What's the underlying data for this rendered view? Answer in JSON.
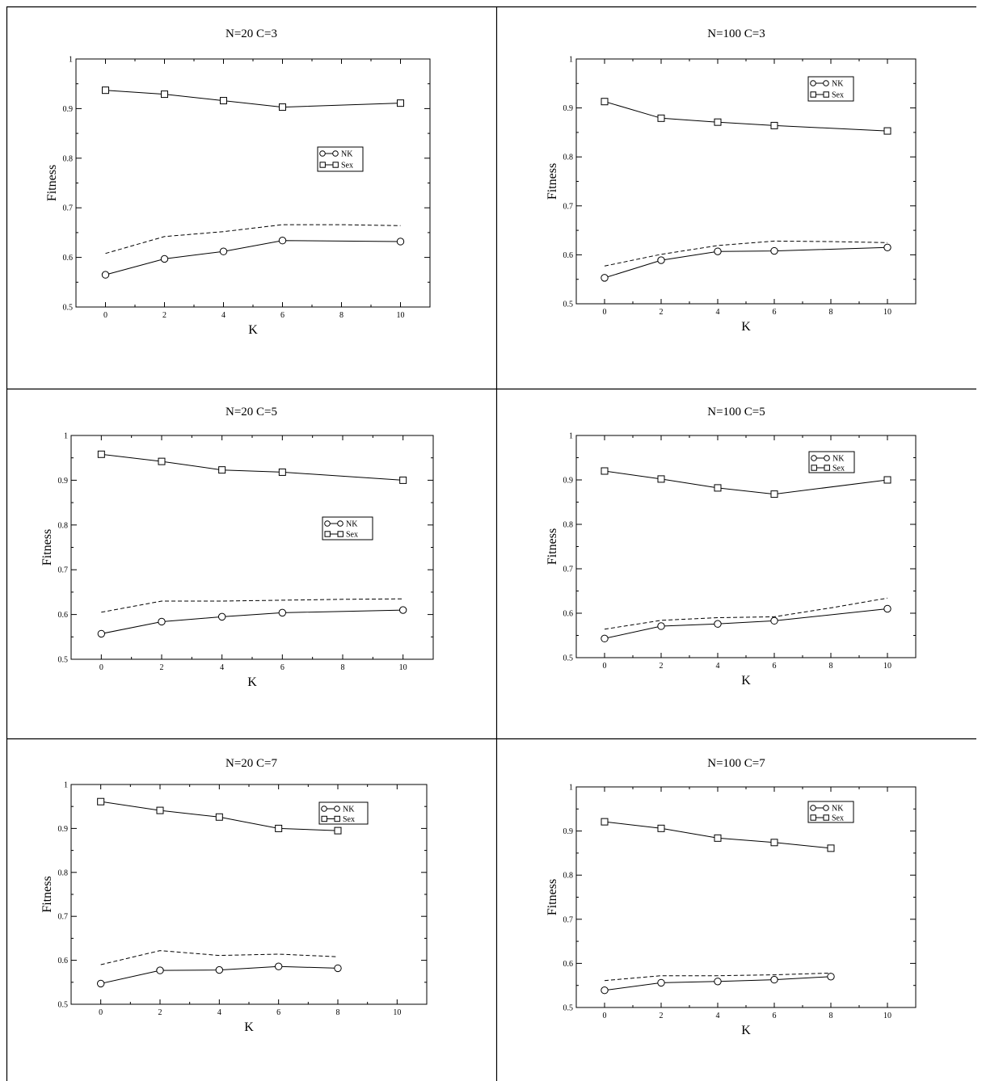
{
  "chart_data": [
    {
      "type": "line",
      "title": "N=20 C=3",
      "xlabel": "K",
      "ylabel": "Fitness",
      "xlim": [
        -1,
        11
      ],
      "ylim": [
        0.5,
        1.0
      ],
      "xticks": [
        "0",
        "2",
        "4",
        "6",
        "8",
        "10"
      ],
      "yticks": [
        "0.5",
        "0.6",
        "0.7",
        "0.8",
        "0.9",
        "1"
      ],
      "legend": {
        "position": "middle-right",
        "entries": [
          "NK",
          "Sex"
        ]
      },
      "series": [
        {
          "name": "NK",
          "marker": "circle",
          "style": "solid",
          "x": [
            0,
            2,
            4,
            6,
            10
          ],
          "values": [
            0.565,
            0.597,
            0.612,
            0.634,
            0.632
          ]
        },
        {
          "name": "Sex",
          "marker": "square",
          "style": "solid",
          "x": [
            0,
            2,
            4,
            6,
            10
          ],
          "values": [
            0.937,
            0.929,
            0.916,
            0.903,
            0.911
          ]
        },
        {
          "marker": "none",
          "style": "dashed",
          "x": [
            0,
            2,
            4,
            6,
            8,
            10
          ],
          "values": [
            0.608,
            0.642,
            0.652,
            0.666,
            0.666,
            0.664
          ]
        }
      ]
    },
    {
      "type": "line",
      "title": "N=100 C=3",
      "xlabel": "K",
      "ylabel": "Fitness",
      "xlim": [
        -1,
        11
      ],
      "ylim": [
        0.5,
        1.0
      ],
      "xticks": [
        "0",
        "2",
        "4",
        "6",
        "8",
        "10"
      ],
      "yticks": [
        "0.5",
        "0.6",
        "0.7",
        "0.8",
        "0.9",
        "1"
      ],
      "legend": {
        "position": "top-right",
        "entries": [
          "NK",
          "Sex"
        ]
      },
      "series": [
        {
          "name": "NK",
          "marker": "circle",
          "style": "solid",
          "x": [
            0,
            2,
            4,
            6,
            10
          ],
          "values": [
            0.553,
            0.589,
            0.607,
            0.608,
            0.615
          ]
        },
        {
          "name": "Sex",
          "marker": "square",
          "style": "solid",
          "x": [
            0,
            2,
            4,
            6,
            10
          ],
          "values": [
            0.913,
            0.879,
            0.871,
            0.864,
            0.853
          ]
        },
        {
          "marker": "none",
          "style": "dashed",
          "x": [
            0,
            2,
            4,
            6,
            8,
            10
          ],
          "values": [
            0.577,
            0.601,
            0.619,
            0.628,
            0.627,
            0.625
          ]
        }
      ]
    },
    {
      "type": "line",
      "title": "N=20 C=5",
      "xlabel": "K",
      "ylabel": "Fitness",
      "xlim": [
        -1,
        11
      ],
      "ylim": [
        0.5,
        1.0
      ],
      "xticks": [
        "0",
        "2",
        "4",
        "6",
        "8",
        "10"
      ],
      "yticks": [
        "0.5",
        "0.6",
        "0.7",
        "0.8",
        "0.9",
        "1"
      ],
      "legend": {
        "position": "middle-right",
        "entries": [
          "NK",
          "Sex"
        ]
      },
      "series": [
        {
          "name": "NK",
          "marker": "circle",
          "style": "solid",
          "x": [
            0,
            2,
            4,
            6,
            10
          ],
          "values": [
            0.557,
            0.584,
            0.595,
            0.604,
            0.61
          ]
        },
        {
          "name": "Sex",
          "marker": "square",
          "style": "solid",
          "x": [
            0,
            2,
            4,
            6,
            10
          ],
          "values": [
            0.958,
            0.942,
            0.923,
            0.918,
            0.9
          ]
        },
        {
          "marker": "none",
          "style": "dashed",
          "x": [
            0,
            2,
            4,
            6,
            8,
            10
          ],
          "values": [
            0.605,
            0.63,
            0.63,
            0.632,
            0.634,
            0.635
          ]
        }
      ]
    },
    {
      "type": "line",
      "title": "N=100 C=5",
      "xlabel": "K",
      "ylabel": "Fitness",
      "xlim": [
        -1,
        11
      ],
      "ylim": [
        0.5,
        1.0
      ],
      "xticks": [
        "0",
        "2",
        "4",
        "6",
        "8",
        "10"
      ],
      "yticks": [
        "0.5",
        "0.6",
        "0.7",
        "0.8",
        "0.9",
        "1"
      ],
      "legend": {
        "position": "top-right",
        "entries": [
          "NK",
          "Sex"
        ]
      },
      "series": [
        {
          "name": "NK",
          "marker": "circle",
          "style": "solid",
          "x": [
            0,
            2,
            4,
            6,
            10
          ],
          "values": [
            0.543,
            0.571,
            0.576,
            0.583,
            0.61
          ]
        },
        {
          "name": "Sex",
          "marker": "square",
          "style": "solid",
          "x": [
            0,
            2,
            4,
            6,
            10
          ],
          "values": [
            0.92,
            0.902,
            0.882,
            0.868,
            0.9
          ]
        },
        {
          "marker": "none",
          "style": "dashed",
          "x": [
            0,
            2,
            4,
            6,
            8,
            10
          ],
          "values": [
            0.564,
            0.584,
            0.59,
            0.592,
            0.612,
            0.634
          ]
        }
      ]
    },
    {
      "type": "line",
      "title": "N=20 C=7",
      "xlabel": "K",
      "ylabel": "Fitness",
      "xlim": [
        -1,
        11
      ],
      "ylim": [
        0.5,
        1.0
      ],
      "xticks": [
        "0",
        "2",
        "4",
        "6",
        "8",
        "10"
      ],
      "yticks": [
        "0.5",
        "0.6",
        "0.7",
        "0.8",
        "0.9",
        "1"
      ],
      "legend": {
        "position": "top-right",
        "entries": [
          "NK",
          "Sex"
        ]
      },
      "series": [
        {
          "name": "NK",
          "marker": "circle",
          "style": "solid",
          "x": [
            0,
            2,
            4,
            6,
            8
          ],
          "values": [
            0.547,
            0.577,
            0.578,
            0.586,
            0.582
          ]
        },
        {
          "name": "Sex",
          "marker": "square",
          "style": "solid",
          "x": [
            0,
            2,
            4,
            6,
            8
          ],
          "values": [
            0.961,
            0.941,
            0.926,
            0.9,
            0.895
          ]
        },
        {
          "marker": "none",
          "style": "dashed",
          "x": [
            0,
            2,
            4,
            6,
            8
          ],
          "values": [
            0.59,
            0.622,
            0.611,
            0.614,
            0.608
          ]
        }
      ]
    },
    {
      "type": "line",
      "title": "N=100 C=7",
      "xlabel": "K",
      "ylabel": "Fitness",
      "xlim": [
        -1,
        11
      ],
      "ylim": [
        0.5,
        1.0
      ],
      "xticks": [
        "0",
        "2",
        "4",
        "6",
        "8",
        "10"
      ],
      "yticks": [
        "0.5",
        "0.6",
        "0.7",
        "0.8",
        "0.9",
        "1"
      ],
      "legend": {
        "position": "top-right",
        "entries": [
          "NK",
          "Sex"
        ]
      },
      "series": [
        {
          "name": "NK",
          "marker": "circle",
          "style": "solid",
          "x": [
            0,
            2,
            4,
            6,
            8
          ],
          "values": [
            0.539,
            0.556,
            0.559,
            0.563,
            0.57
          ]
        },
        {
          "name": "Sex",
          "marker": "square",
          "style": "solid",
          "x": [
            0,
            2,
            4,
            6,
            8
          ],
          "values": [
            0.921,
            0.906,
            0.884,
            0.874,
            0.861
          ]
        },
        {
          "marker": "none",
          "style": "dashed",
          "x": [
            0,
            2,
            4,
            6,
            8
          ],
          "values": [
            0.561,
            0.572,
            0.572,
            0.574,
            0.578
          ]
        }
      ]
    }
  ]
}
